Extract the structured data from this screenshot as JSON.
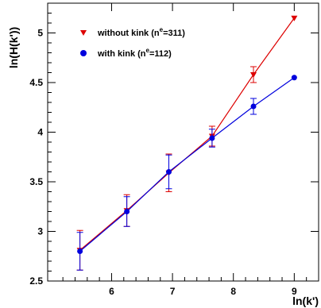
{
  "chart_data": {
    "type": "scatter",
    "xlabel": "ln(k')",
    "ylabel": "ln(H(k'))",
    "xlim": [
      4.95,
      9.4
    ],
    "ylim": [
      2.5,
      5.3
    ],
    "xticks": [
      6,
      7,
      8,
      9
    ],
    "xtick_labels": [
      "6",
      "7",
      "8",
      "9"
    ],
    "yticks": [
      2.5,
      3,
      3.5,
      4,
      4.5,
      5
    ],
    "ytick_labels": [
      "2.5",
      "3",
      "3.5",
      "4",
      "4.5",
      "5"
    ],
    "grid": false,
    "legend_position": "top-left",
    "series": [
      {
        "name": "without kink (n",
        "name_sup": "e",
        "name_tail": "=311)",
        "color": "#dd0000",
        "marker": "triangle-down",
        "x": [
          5.48,
          6.25,
          6.94,
          7.65,
          8.33,
          9.0
        ],
        "y": [
          2.81,
          3.21,
          3.59,
          3.96,
          4.58,
          5.15
        ],
        "err": [
          0.2,
          0.16,
          0.19,
          0.1,
          0.08,
          0
        ]
      },
      {
        "name": "with kink (n",
        "name_sup": "e",
        "name_tail": "=112)",
        "color": "#0000dd",
        "marker": "circle",
        "x": [
          5.48,
          6.25,
          6.94,
          7.65,
          8.33,
          9.0
        ],
        "y": [
          2.8,
          3.2,
          3.6,
          3.94,
          4.26,
          4.55
        ],
        "err": [
          0.19,
          0.15,
          0.17,
          0.09,
          0.08,
          0
        ]
      }
    ]
  }
}
